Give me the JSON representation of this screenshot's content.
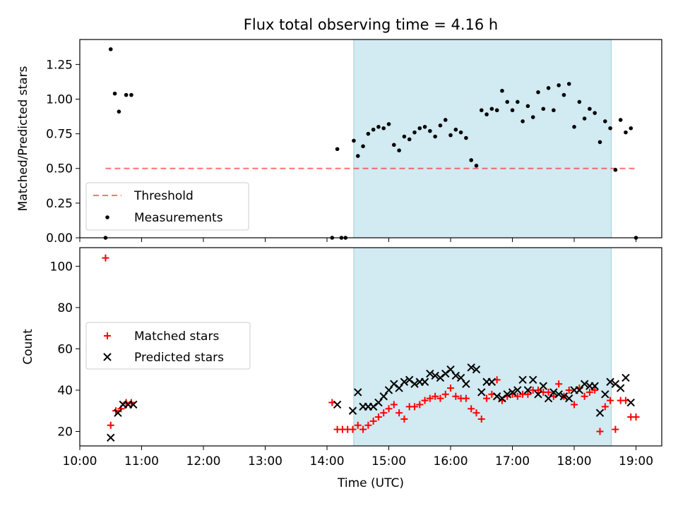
{
  "chart_data": {
    "type": "scatter",
    "title": "Flux total observing time = 4.16 h",
    "xlabel": "Time (UTC)",
    "x_unit": "hours UTC",
    "xlim": [
      "10:00",
      "19:25"
    ],
    "x_ticks": [
      "10:00",
      "11:00",
      "12:00",
      "13:00",
      "14:00",
      "15:00",
      "16:00",
      "17:00",
      "18:00",
      "19:00"
    ],
    "shaded_interval": [
      "14:26",
      "18:36"
    ],
    "shade_color": "#add8e6",
    "panels": [
      {
        "ylabel": "Matched/Predicted stars",
        "ylim": [
          0.0,
          1.43
        ],
        "y_ticks": [
          "0.00",
          "0.25",
          "0.50",
          "0.75",
          "1.00",
          "1.25"
        ],
        "legend_position": "lower-left",
        "threshold": {
          "name": "Threshold",
          "y": 0.5,
          "x_range": [
            "10:25",
            "19:00"
          ],
          "color": "#ff0000"
        },
        "series": [
          {
            "name": "Measurements",
            "color": "#000000",
            "marker": "dot",
            "points": [
              [
                "10:25",
                0.0
              ],
              [
                "10:30",
                1.36
              ],
              [
                "10:34",
                1.04
              ],
              [
                "10:38",
                0.91
              ],
              [
                "10:45",
                1.03
              ],
              [
                "10:50",
                1.03
              ],
              [
                "14:05",
                0.0
              ],
              [
                "14:10",
                0.64
              ],
              [
                "14:14",
                0.0
              ],
              [
                "14:18",
                0.0
              ],
              [
                "14:26",
                0.7
              ],
              [
                "14:30",
                0.59
              ],
              [
                "14:35",
                0.66
              ],
              [
                "14:40",
                0.75
              ],
              [
                "14:45",
                0.78
              ],
              [
                "14:50",
                0.8
              ],
              [
                "14:55",
                0.79
              ],
              [
                "15:00",
                0.82
              ],
              [
                "15:05",
                0.67
              ],
              [
                "15:10",
                0.63
              ],
              [
                "15:15",
                0.73
              ],
              [
                "15:20",
                0.71
              ],
              [
                "15:25",
                0.76
              ],
              [
                "15:30",
                0.79
              ],
              [
                "15:35",
                0.8
              ],
              [
                "15:40",
                0.77
              ],
              [
                "15:45",
                0.73
              ],
              [
                "15:50",
                0.81
              ],
              [
                "15:55",
                0.85
              ],
              [
                "16:00",
                0.74
              ],
              [
                "16:05",
                0.78
              ],
              [
                "16:10",
                0.76
              ],
              [
                "16:15",
                0.72
              ],
              [
                "16:20",
                0.56
              ],
              [
                "16:25",
                0.52
              ],
              [
                "16:30",
                0.92
              ],
              [
                "16:35",
                0.89
              ],
              [
                "16:40",
                0.93
              ],
              [
                "16:45",
                0.92
              ],
              [
                "16:50",
                1.06
              ],
              [
                "16:55",
                0.98
              ],
              [
                "17:00",
                0.92
              ],
              [
                "17:05",
                0.98
              ],
              [
                "17:10",
                0.84
              ],
              [
                "17:15",
                0.95
              ],
              [
                "17:20",
                0.87
              ],
              [
                "17:25",
                1.05
              ],
              [
                "17:30",
                0.93
              ],
              [
                "17:35",
                1.08
              ],
              [
                "17:40",
                0.92
              ],
              [
                "17:45",
                1.1
              ],
              [
                "17:50",
                1.03
              ],
              [
                "17:55",
                1.11
              ],
              [
                "18:00",
                0.8
              ],
              [
                "18:05",
                0.98
              ],
              [
                "18:10",
                0.86
              ],
              [
                "18:15",
                0.93
              ],
              [
                "18:20",
                0.9
              ],
              [
                "18:25",
                0.69
              ],
              [
                "18:30",
                0.84
              ],
              [
                "18:35",
                0.79
              ],
              [
                "18:40",
                0.49
              ],
              [
                "18:45",
                0.85
              ],
              [
                "18:50",
                0.76
              ],
              [
                "18:55",
                0.79
              ],
              [
                "19:00",
                0.0
              ]
            ]
          }
        ]
      },
      {
        "ylabel": "Count",
        "ylim": [
          13,
          109
        ],
        "y_ticks": [
          "20",
          "40",
          "60",
          "80",
          "100"
        ],
        "legend_position": "center-left",
        "series": [
          {
            "name": "Matched stars",
            "color": "#ff0000",
            "marker": "plus",
            "points": [
              [
                "10:25",
                104
              ],
              [
                "10:30",
                23
              ],
              [
                "10:35",
                30
              ],
              [
                "10:40",
                31
              ],
              [
                "10:45",
                34
              ],
              [
                "10:50",
                34
              ],
              [
                "14:05",
                34
              ],
              [
                "14:10",
                21
              ],
              [
                "14:15",
                21
              ],
              [
                "14:20",
                21
              ],
              [
                "14:25",
                21
              ],
              [
                "14:30",
                23
              ],
              [
                "14:35",
                21
              ],
              [
                "14:40",
                23
              ],
              [
                "14:45",
                25
              ],
              [
                "14:50",
                27
              ],
              [
                "14:55",
                29
              ],
              [
                "15:00",
                31
              ],
              [
                "15:05",
                33
              ],
              [
                "15:10",
                29
              ],
              [
                "15:15",
                26
              ],
              [
                "15:20",
                32
              ],
              [
                "15:25",
                32
              ],
              [
                "15:30",
                33
              ],
              [
                "15:35",
                35
              ],
              [
                "15:40",
                36
              ],
              [
                "15:45",
                37
              ],
              [
                "15:50",
                36
              ],
              [
                "15:55",
                38
              ],
              [
                "16:00",
                41
              ],
              [
                "16:05",
                37
              ],
              [
                "16:10",
                36
              ],
              [
                "16:15",
                36
              ],
              [
                "16:20",
                31
              ],
              [
                "16:25",
                29
              ],
              [
                "16:30",
                26
              ],
              [
                "16:35",
                36
              ],
              [
                "16:40",
                38
              ],
              [
                "16:45",
                45
              ],
              [
                "16:50",
                35
              ],
              [
                "16:55",
                37
              ],
              [
                "17:00",
                38
              ],
              [
                "17:05",
                37
              ],
              [
                "17:10",
                38
              ],
              [
                "17:15",
                38
              ],
              [
                "17:20",
                40
              ],
              [
                "17:25",
                40
              ],
              [
                "17:30",
                39
              ],
              [
                "17:35",
                39
              ],
              [
                "17:40",
                37
              ],
              [
                "17:45",
                43
              ],
              [
                "17:50",
                37
              ],
              [
                "17:55",
                40
              ],
              [
                "18:00",
                33
              ],
              [
                "18:05",
                41
              ],
              [
                "18:10",
                37
              ],
              [
                "18:15",
                39
              ],
              [
                "18:20",
                40
              ],
              [
                "18:25",
                20
              ],
              [
                "18:30",
                32
              ],
              [
                "18:35",
                35
              ],
              [
                "18:40",
                21
              ],
              [
                "18:45",
                35
              ],
              [
                "18:50",
                35
              ],
              [
                "18:55",
                27
              ],
              [
                "19:00",
                27
              ]
            ]
          },
          {
            "name": "Predicted stars",
            "color": "#000000",
            "marker": "x",
            "points": [
              [
                "10:30",
                17
              ],
              [
                "10:37",
                29
              ],
              [
                "10:42",
                33
              ],
              [
                "10:47",
                33
              ],
              [
                "10:52",
                33
              ],
              [
                "14:10",
                33
              ],
              [
                "14:25",
                30
              ],
              [
                "14:30",
                39
              ],
              [
                "14:35",
                32
              ],
              [
                "14:40",
                32
              ],
              [
                "14:45",
                32
              ],
              [
                "14:50",
                34
              ],
              [
                "14:55",
                37
              ],
              [
                "15:00",
                40
              ],
              [
                "15:05",
                43
              ],
              [
                "15:10",
                41
              ],
              [
                "15:15",
                44
              ],
              [
                "15:20",
                45
              ],
              [
                "15:25",
                43
              ],
              [
                "15:30",
                44
              ],
              [
                "15:35",
                44
              ],
              [
                "15:40",
                48
              ],
              [
                "15:45",
                47
              ],
              [
                "15:50",
                46
              ],
              [
                "15:55",
                48
              ],
              [
                "16:00",
                50
              ],
              [
                "16:05",
                47
              ],
              [
                "16:10",
                46
              ],
              [
                "16:15",
                43
              ],
              [
                "16:20",
                51
              ],
              [
                "16:25",
                50
              ],
              [
                "16:30",
                39
              ],
              [
                "16:35",
                44
              ],
              [
                "16:40",
                44
              ],
              [
                "16:45",
                37
              ],
              [
                "16:50",
                36
              ],
              [
                "16:55",
                38
              ],
              [
                "17:00",
                39
              ],
              [
                "17:05",
                40
              ],
              [
                "17:10",
                45
              ],
              [
                "17:15",
                40
              ],
              [
                "17:20",
                45
              ],
              [
                "17:25",
                38
              ],
              [
                "17:30",
                42
              ],
              [
                "17:35",
                36
              ],
              [
                "17:40",
                39
              ],
              [
                "17:45",
                38
              ],
              [
                "17:50",
                37
              ],
              [
                "17:55",
                36
              ],
              [
                "18:00",
                40
              ],
              [
                "18:05",
                40
              ],
              [
                "18:10",
                43
              ],
              [
                "18:15",
                42
              ],
              [
                "18:20",
                42
              ],
              [
                "18:25",
                29
              ],
              [
                "18:30",
                38
              ],
              [
                "18:35",
                44
              ],
              [
                "18:40",
                43
              ],
              [
                "18:45",
                41
              ],
              [
                "18:50",
                46
              ],
              [
                "18:55",
                34
              ]
            ]
          }
        ]
      }
    ]
  }
}
